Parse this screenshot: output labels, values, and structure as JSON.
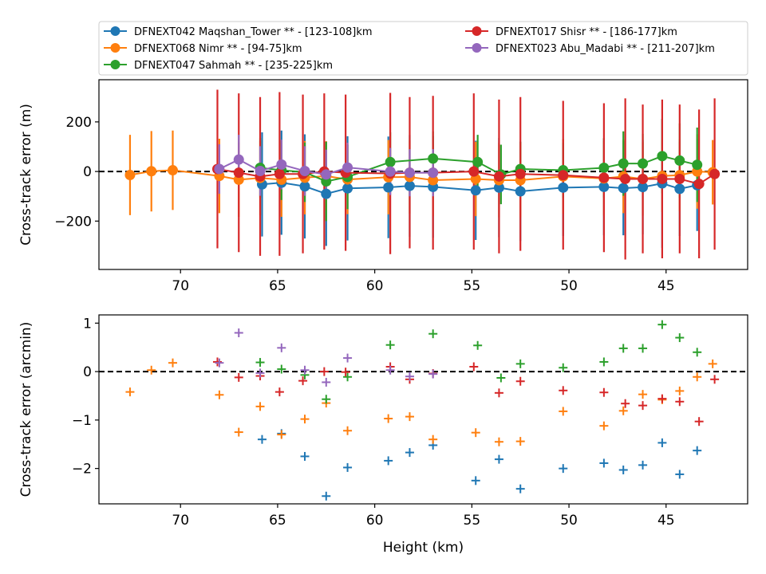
{
  "chart_data": [
    {
      "type": "line",
      "panel": "top",
      "xlabel": "",
      "ylabel": "Cross-track error (m)",
      "xlim": [
        74.2,
        40.8
      ],
      "ylim": [
        -395,
        370
      ],
      "xticks": [
        70,
        65,
        60,
        55,
        50,
        45
      ],
      "yticks": [
        -200,
        0,
        200
      ],
      "error_bars": true,
      "reference_line": {
        "y": 0,
        "style": "dashed",
        "color": "#000000"
      },
      "legend": {
        "placement": "above",
        "columns": 2
      },
      "series": [
        {
          "name": "DFNEXT042 Maqshan_Tower **  - [123-108]km",
          "color": "#1f77b4",
          "x": [
            65.8,
            64.8,
            63.6,
            62.5,
            61.4,
            59.3,
            58.2,
            57.0,
            54.8,
            53.6,
            52.5,
            50.3,
            48.2,
            47.2,
            46.2,
            45.2,
            44.3,
            43.4
          ],
          "y": [
            -52,
            -45,
            -60,
            -90,
            -68,
            -64,
            -58,
            -62,
            -76,
            -65,
            -80,
            -65,
            -62,
            -67,
            -63,
            -48,
            -70,
            -55
          ],
          "err": [
            210,
            210,
            210,
            210,
            210,
            205,
            205,
            205,
            200,
            200,
            200,
            195,
            195,
            190,
            190,
            260,
            190,
            185
          ]
        },
        {
          "name": "DFNEXT068 Nimr **  - [94-75]km",
          "color": "#ff7f0e",
          "x": [
            72.6,
            71.5,
            70.4,
            68.0,
            67.0,
            65.9,
            64.8,
            63.6,
            62.5,
            61.4,
            59.3,
            58.2,
            57.0,
            54.8,
            53.6,
            52.5,
            50.3,
            48.2,
            47.2,
            46.2,
            45.2,
            44.3,
            43.4,
            42.6
          ],
          "y": [
            -14,
            1,
            5,
            -18,
            -33,
            -26,
            -33,
            -25,
            -18,
            -32,
            -23,
            -22,
            -35,
            -30,
            -35,
            -35,
            -20,
            -28,
            -20,
            -30,
            -18,
            -15,
            0,
            -3
          ],
          "err": [
            162,
            162,
            160,
            150,
            150,
            150,
            150,
            148,
            140,
            140,
            150,
            148,
            145,
            150,
            150,
            150,
            150,
            150,
            148,
            148,
            145,
            145,
            150,
            130
          ]
        },
        {
          "name": "DFNEXT047 Sahmah **  - [235-225]km",
          "color": "#2ca02c",
          "x": [
            65.9,
            64.8,
            63.6,
            62.5,
            61.4,
            59.2,
            57.0,
            54.7,
            53.5,
            52.5,
            50.3,
            48.2,
            47.2,
            46.2,
            45.2,
            44.3,
            43.4
          ],
          "y": [
            15,
            5,
            -3,
            -40,
            -22,
            38,
            52,
            38,
            -12,
            10,
            5,
            15,
            32,
            32,
            62,
            44,
            27
          ],
          "err": [
            120,
            120,
            120,
            160,
            130,
            120,
            110,
            110,
            120,
            110,
            110,
            120,
            130,
            120,
            150,
            150,
            150
          ]
        },
        {
          "name": "DFNEXT017 Shisr **  - [186-177]km",
          "color": "#d62728",
          "x": [
            68.1,
            67.0,
            65.9,
            64.9,
            63.7,
            62.6,
            61.5,
            59.2,
            58.2,
            57.0,
            54.9,
            53.6,
            52.5,
            50.3,
            48.2,
            47.1,
            46.2,
            45.2,
            44.3,
            43.3,
            42.5
          ],
          "y": [
            10,
            -5,
            -20,
            -10,
            -10,
            0,
            -5,
            -8,
            -5,
            -5,
            0,
            -20,
            -10,
            -15,
            -25,
            -30,
            -30,
            -30,
            -30,
            -50,
            -10
          ],
          "err": [
            320,
            320,
            320,
            330,
            320,
            315,
            315,
            325,
            305,
            310,
            315,
            310,
            310,
            300,
            300,
            325,
            300,
            320,
            300,
            300,
            305
          ]
        },
        {
          "name": "DFNEXT023 Abu_Madabi **  - [211-207]km",
          "color": "#9467bd",
          "x": [
            68.0,
            67.0,
            65.9,
            64.8,
            63.6,
            62.5,
            61.4,
            59.2,
            58.2,
            57.0
          ],
          "y": [
            10,
            48,
            2,
            28,
            2,
            -12,
            16,
            0,
            -5,
            -5
          ],
          "err": [
            100,
            100,
            100,
            100,
            100,
            100,
            100,
            95,
            95,
            95
          ]
        }
      ]
    },
    {
      "type": "scatter",
      "panel": "bottom",
      "marker": "+",
      "xlabel": "Height (km)",
      "ylabel": "Cross-track error (arcmin)",
      "xlim": [
        74.2,
        40.8
      ],
      "ylim": [
        -2.73,
        1.17
      ],
      "xticks": [
        70,
        65,
        60,
        55,
        50,
        45
      ],
      "yticks": [
        -2,
        -1,
        0,
        1
      ],
      "reference_line": {
        "y": 0,
        "style": "dashed",
        "color": "#000000"
      },
      "series": [
        {
          "name": "DFNEXT042 Maqshan_Tower **  - [123-108]km",
          "color": "#1f77b4",
          "x": [
            65.8,
            64.8,
            63.6,
            62.5,
            61.4,
            59.3,
            58.2,
            57.0,
            54.8,
            53.6,
            52.5,
            50.3,
            48.2,
            47.2,
            46.2,
            45.2,
            44.3,
            43.4
          ],
          "y": [
            -1.4,
            -1.28,
            -1.75,
            -2.57,
            -1.98,
            -1.84,
            -1.67,
            -1.52,
            -2.25,
            -1.81,
            -2.42,
            -2.0,
            -1.89,
            -2.03,
            -1.93,
            -1.47,
            -2.12,
            -1.63
          ]
        },
        {
          "name": "DFNEXT068 Nimr **  - [94-75]km",
          "color": "#ff7f0e",
          "x": [
            72.6,
            71.5,
            70.4,
            68.0,
            67.0,
            65.9,
            64.8,
            63.6,
            62.5,
            61.4,
            59.3,
            58.2,
            57.0,
            54.8,
            53.6,
            52.5,
            50.3,
            48.2,
            47.2,
            46.2,
            45.2,
            44.3,
            43.4,
            42.6
          ],
          "y": [
            -0.42,
            0.03,
            0.18,
            -0.48,
            -1.25,
            -0.72,
            -1.3,
            -0.98,
            -0.65,
            -1.22,
            -0.97,
            -0.93,
            -1.4,
            -1.26,
            -1.45,
            -1.44,
            -0.82,
            -1.12,
            -0.81,
            -0.47,
            -0.58,
            -0.4,
            -0.11,
            0.16
          ]
        },
        {
          "name": "DFNEXT047 Sahmah **  - [235-225]km",
          "color": "#2ca02c",
          "x": [
            65.9,
            64.8,
            63.6,
            62.5,
            61.4,
            59.2,
            57.0,
            54.7,
            53.5,
            52.5,
            50.3,
            48.2,
            47.2,
            46.2,
            45.2,
            44.3,
            43.4
          ],
          "y": [
            0.19,
            0.05,
            -0.07,
            -0.57,
            -0.11,
            0.55,
            0.78,
            0.54,
            -0.13,
            0.16,
            0.08,
            0.2,
            0.48,
            0.48,
            0.97,
            0.7,
            0.4
          ]
        },
        {
          "name": "DFNEXT017 Shisr **  - [186-177]km",
          "color": "#d62728",
          "x": [
            68.1,
            67.0,
            65.9,
            64.9,
            63.7,
            62.6,
            61.5,
            59.2,
            58.2,
            57.0,
            54.9,
            53.6,
            52.5,
            50.3,
            48.2,
            47.1,
            46.2,
            45.2,
            44.3,
            43.3,
            42.5
          ],
          "y": [
            0.2,
            -0.12,
            -0.09,
            -0.42,
            -0.19,
            0.0,
            -0.01,
            0.1,
            -0.16,
            -0.04,
            0.1,
            -0.44,
            -0.2,
            -0.39,
            -0.43,
            -0.66,
            -0.7,
            -0.56,
            -0.62,
            -1.03,
            -0.16
          ]
        },
        {
          "name": "DFNEXT023 Abu_Madabi **  - [211-207]km",
          "color": "#9467bd",
          "x": [
            68.0,
            67.0,
            65.9,
            64.8,
            63.6,
            62.5,
            61.4,
            59.2,
            58.2,
            57.0
          ],
          "y": [
            0.18,
            0.8,
            -0.03,
            0.49,
            0.03,
            -0.22,
            0.28,
            0.03,
            -0.1,
            -0.05
          ]
        }
      ]
    }
  ]
}
